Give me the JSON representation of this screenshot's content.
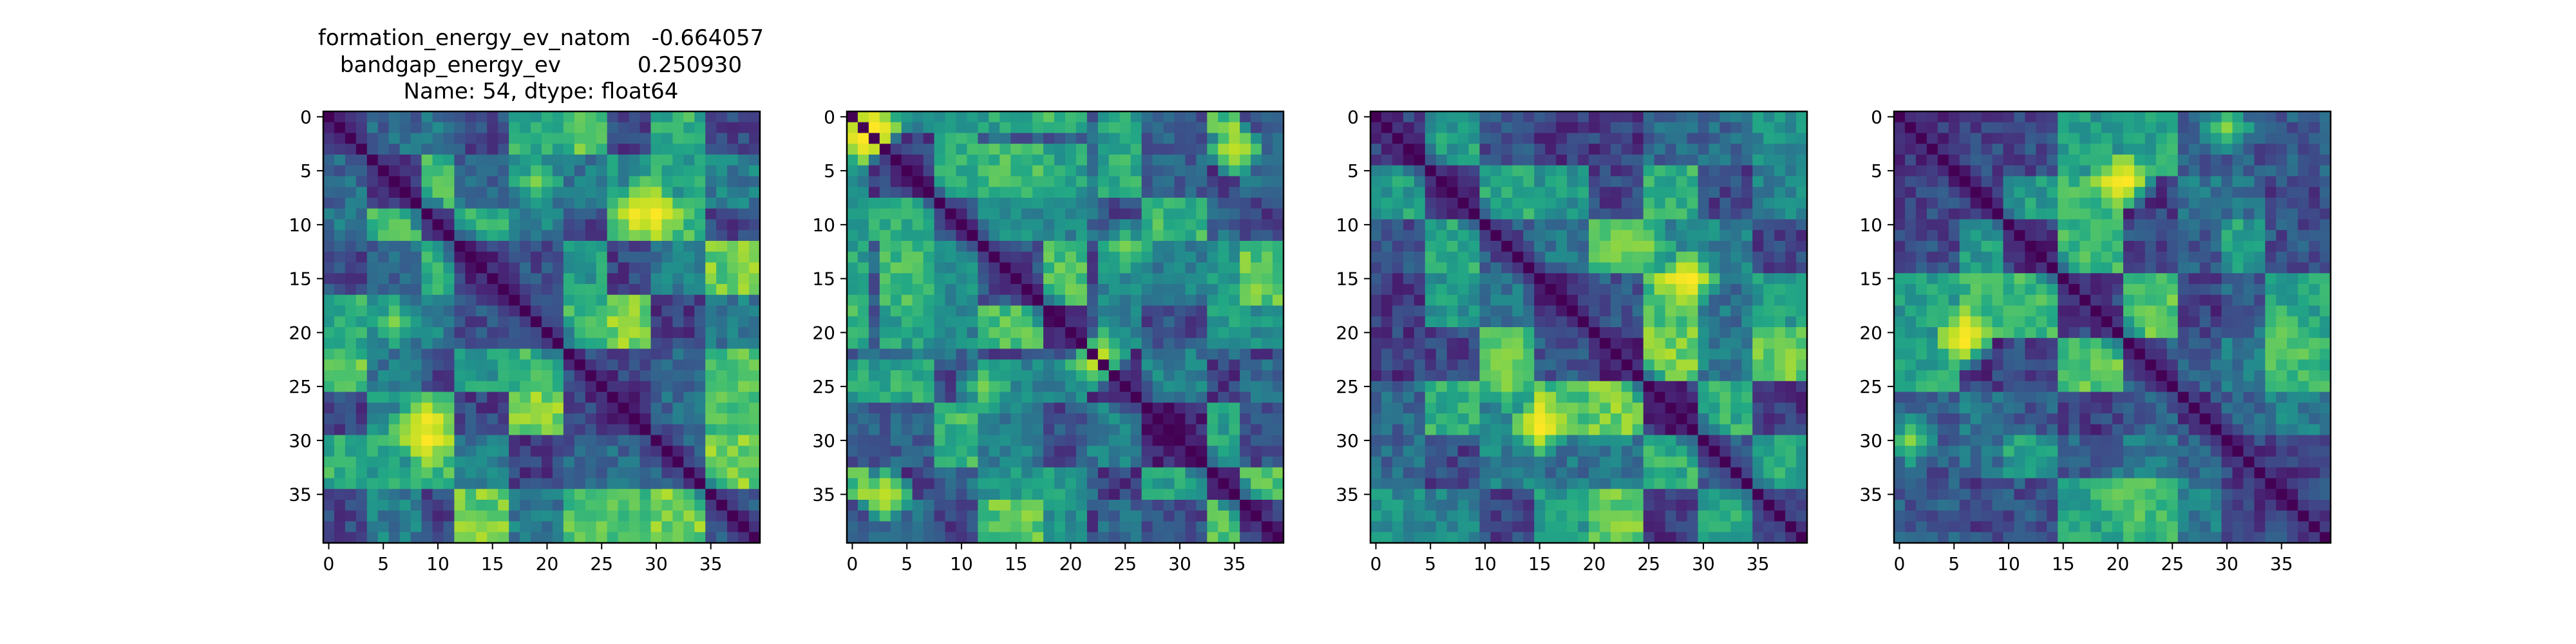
{
  "figure": {
    "title_lines": [
      "formation_energy_ev_natom   -0.664057",
      "bandgap_energy_ev           0.250930",
      "Name: 54, dtype: float64"
    ]
  },
  "chart_data": [
    {
      "type": "heatmap",
      "title": "",
      "size": 40,
      "colormap": "viridis",
      "x_ticks": [
        0,
        5,
        10,
        15,
        20,
        25,
        30,
        35
      ],
      "y_ticks": [
        0,
        5,
        10,
        15,
        20,
        25,
        30,
        35
      ],
      "xlim": [
        -0.5,
        39.5
      ],
      "ylim": [
        39.5,
        -0.5
      ],
      "diagonal_value": 0.0,
      "block_boundaries": [
        4,
        9,
        12,
        17,
        22,
        26,
        30,
        35
      ],
      "hot_spots": [
        [
          9,
          30,
          1.0
        ],
        [
          28,
          9,
          0.95
        ],
        [
          8,
          29,
          0.85
        ],
        [
          19,
          6,
          0.75
        ]
      ],
      "seed": 11
    },
    {
      "type": "heatmap",
      "title": "",
      "size": 40,
      "colormap": "viridis",
      "x_ticks": [
        0,
        5,
        10,
        15,
        20,
        25,
        30,
        35
      ],
      "y_ticks": [
        0,
        5,
        10,
        15,
        20,
        25,
        30,
        35
      ],
      "xlim": [
        -0.5,
        39.5
      ],
      "ylim": [
        39.5,
        -0.5
      ],
      "diagonal_value": 0.0,
      "block_boundaries": [
        2,
        3,
        8,
        12,
        18,
        22,
        23,
        27,
        33,
        36
      ],
      "hot_spots": [
        [
          1,
          2,
          1.0
        ],
        [
          2,
          1,
          1.0
        ],
        [
          3,
          35,
          0.95
        ],
        [
          35,
          3,
          0.9
        ],
        [
          22,
          23,
          0.9
        ],
        [
          12,
          25,
          0.8
        ]
      ],
      "seed": 23
    },
    {
      "type": "heatmap",
      "title": "",
      "size": 40,
      "colormap": "viridis",
      "x_ticks": [
        0,
        5,
        10,
        15,
        20,
        25,
        30,
        35
      ],
      "y_ticks": [
        0,
        5,
        10,
        15,
        20,
        25,
        30,
        35
      ],
      "xlim": [
        -0.5,
        39.5
      ],
      "ylim": [
        39.5,
        -0.5
      ],
      "diagonal_value": 0.0,
      "block_boundaries": [
        5,
        10,
        15,
        20,
        25,
        30,
        35
      ],
      "hot_spots": [
        [
          29,
          15,
          1.0
        ],
        [
          15,
          28,
          0.95
        ],
        [
          12,
          25,
          0.8
        ],
        [
          22,
          12,
          0.8
        ]
      ],
      "seed": 37
    },
    {
      "type": "heatmap",
      "title": "",
      "size": 40,
      "colormap": "viridis",
      "x_ticks": [
        0,
        5,
        10,
        15,
        20,
        25,
        30,
        35
      ],
      "y_ticks": [
        0,
        5,
        10,
        15,
        20,
        25,
        30,
        35
      ],
      "xlim": [
        -0.5,
        39.5
      ],
      "ylim": [
        39.5,
        -0.5
      ],
      "diagonal_value": 0.0,
      "block_boundaries": [
        6,
        10,
        15,
        21,
        26,
        30,
        34
      ],
      "hot_spots": [
        [
          21,
          6,
          1.0
        ],
        [
          6,
          20,
          0.95
        ],
        [
          1,
          30,
          0.8
        ],
        [
          20,
          35,
          0.75
        ]
      ],
      "seed": 53
    }
  ]
}
